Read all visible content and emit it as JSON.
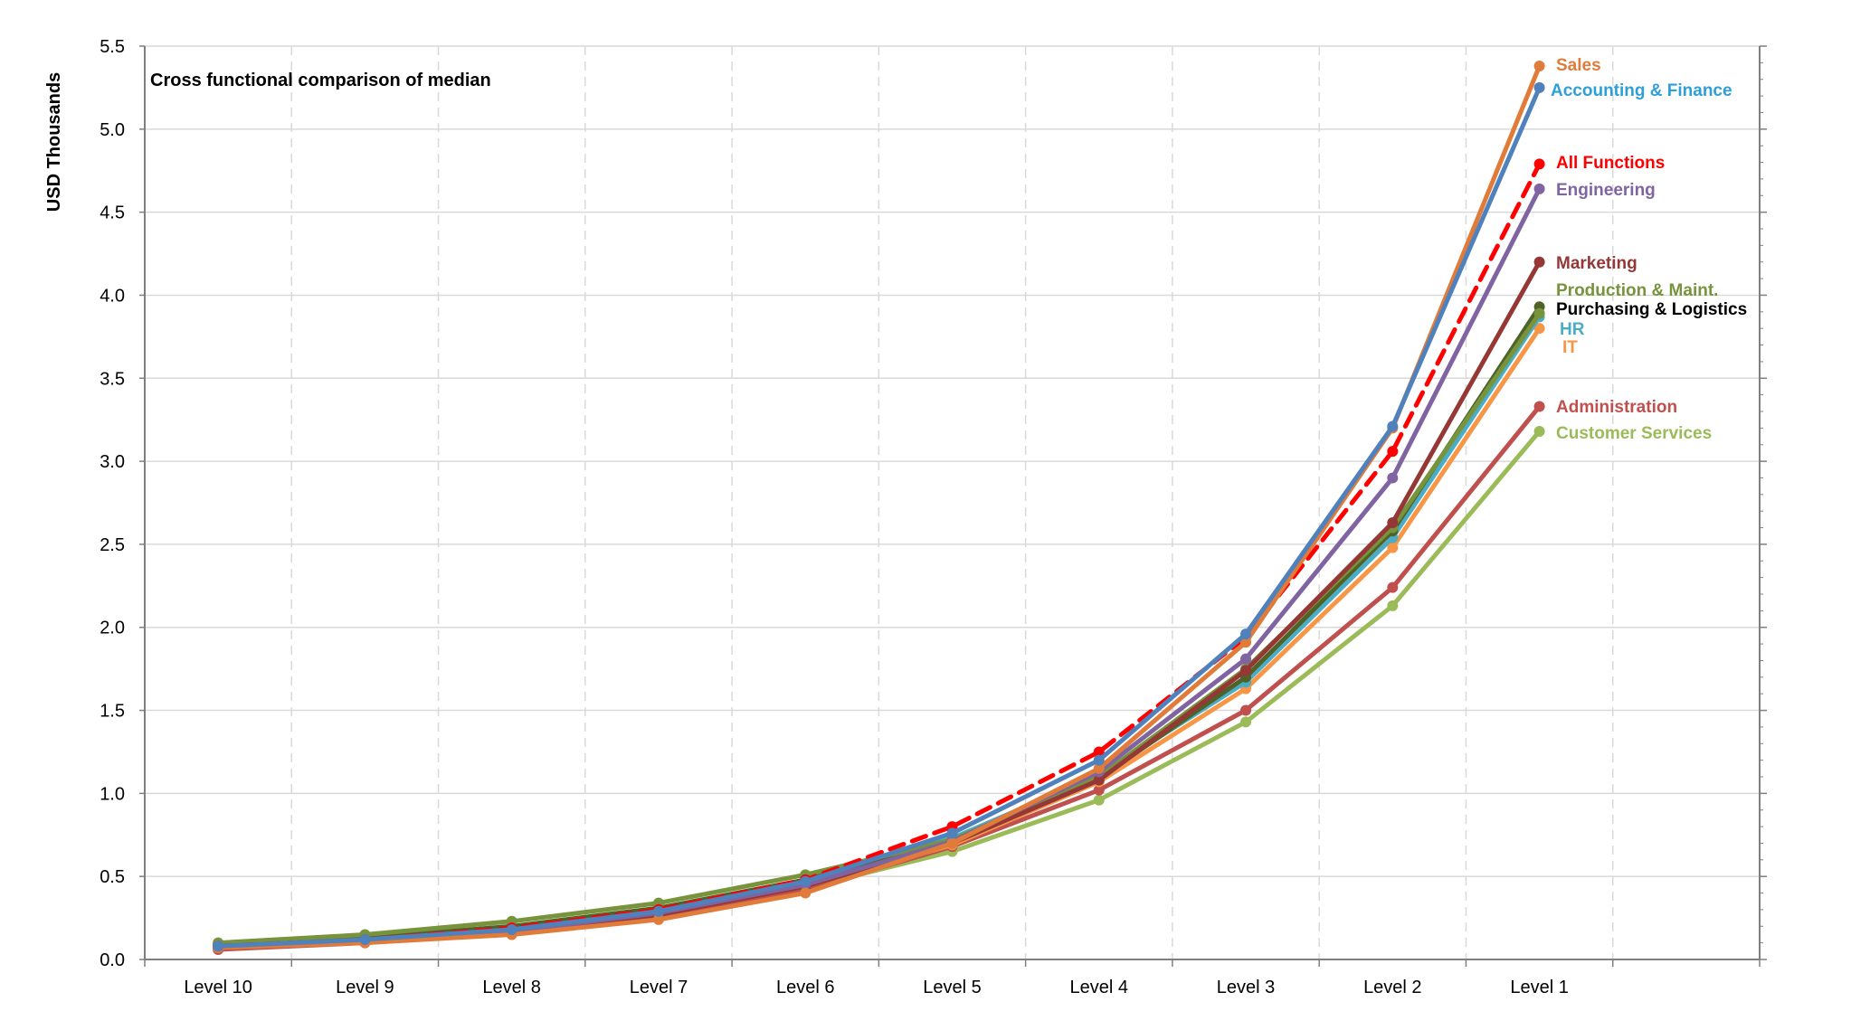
{
  "chart_data": {
    "type": "line",
    "title": "Cross functional comparison of median",
    "xlabel": "",
    "ylabel": "USD Thousands",
    "categories": [
      "Level 10",
      "Level 9",
      "Level 8",
      "Level 7",
      "Level 6",
      "Level 5",
      "Level 4",
      "Level 3",
      "Level 2",
      "Level 1"
    ],
    "ylim": [
      0,
      5.5
    ],
    "yticks": [
      "0.0",
      "0.5",
      "1.0",
      "1.5",
      "2.0",
      "2.5",
      "3.0",
      "3.5",
      "4.0",
      "4.5",
      "5.0",
      "5.5"
    ],
    "grid": {
      "horizontal": "solid",
      "vertical": "dashed"
    },
    "legend": "labels at right end of each line",
    "series": [
      {
        "name": "Customer Services",
        "color": "#9BBB59",
        "dashed": false,
        "values": [
          0.08,
          0.12,
          0.17,
          0.26,
          0.43,
          0.65,
          0.96,
          1.43,
          2.13,
          3.18
        ]
      },
      {
        "name": "Administration",
        "color": "#C0504D",
        "dashed": false,
        "values": [
          0.06,
          0.1,
          0.16,
          0.26,
          0.42,
          0.68,
          1.02,
          1.5,
          2.24,
          3.33
        ]
      },
      {
        "name": "IT",
        "color": "#F79646",
        "dashed": false,
        "values": [
          0.08,
          0.12,
          0.18,
          0.28,
          0.44,
          0.69,
          1.07,
          1.63,
          2.48,
          3.8
        ]
      },
      {
        "name": "HR",
        "color": "#4BACC6",
        "dashed": false,
        "values": [
          0.08,
          0.13,
          0.19,
          0.3,
          0.47,
          0.73,
          1.11,
          1.67,
          2.54,
          3.87
        ]
      },
      {
        "name": "Purchasing & Logistics",
        "color": "#4F6228",
        "dashed": false,
        "values": [
          0.09,
          0.13,
          0.2,
          0.31,
          0.48,
          0.72,
          1.09,
          1.7,
          2.58,
          3.93
        ]
      },
      {
        "name": "Production & Maint.",
        "color": "#77933C",
        "dashed": false,
        "values": [
          0.1,
          0.15,
          0.23,
          0.34,
          0.51,
          0.72,
          1.1,
          1.75,
          2.6,
          3.89
        ]
      },
      {
        "name": "Marketing",
        "color": "#953735",
        "dashed": false,
        "values": [
          0.07,
          0.11,
          0.17,
          0.27,
          0.44,
          0.7,
          1.08,
          1.74,
          2.63,
          4.2
        ]
      },
      {
        "name": "Engineering",
        "color": "#8064A2",
        "dashed": false,
        "values": [
          0.07,
          0.11,
          0.17,
          0.28,
          0.45,
          0.71,
          1.13,
          1.81,
          2.9,
          4.64
        ]
      },
      {
        "name": "All Functions",
        "color": "#FF0000",
        "dashed": true,
        "values": [
          0.08,
          0.12,
          0.19,
          0.3,
          0.48,
          0.8,
          1.25,
          1.94,
          3.06,
          4.79
        ]
      },
      {
        "name": "Sales",
        "color": "#E07B39",
        "dashed": false,
        "values": [
          0.07,
          0.1,
          0.15,
          0.24,
          0.4,
          0.7,
          1.15,
          1.91,
          3.2,
          5.38
        ]
      },
      {
        "name": "Accounting & Finance",
        "color": "#4F81BD",
        "dashed": false,
        "values": [
          0.08,
          0.12,
          0.18,
          0.29,
          0.47,
          0.76,
          1.2,
          1.96,
          3.21,
          5.25
        ]
      }
    ],
    "end_labels": [
      {
        "text": "Sales",
        "color": "#E07B39"
      },
      {
        "text": "Accounting & Finance",
        "color": "#2E9FD8"
      },
      {
        "text": "All Functions",
        "color": "#FF0000"
      },
      {
        "text": "Engineering",
        "color": "#8064A2"
      },
      {
        "text": "Marketing",
        "color": "#953735"
      },
      {
        "text": "Production & Maint.",
        "color": "#77933C"
      },
      {
        "text": "Purchasing & Logistics",
        "color": "#000000"
      },
      {
        "text": "HR",
        "color": "#4BACC6"
      },
      {
        "text": "IT",
        "color": "#F79646"
      },
      {
        "text": "Administration",
        "color": "#C0504D"
      },
      {
        "text": "Customer Services",
        "color": "#9BBB59"
      }
    ]
  }
}
